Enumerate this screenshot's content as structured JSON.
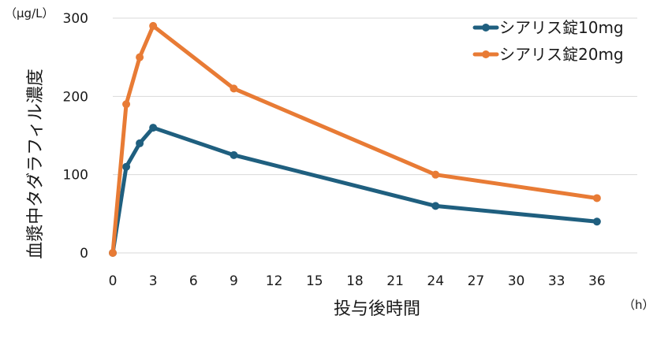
{
  "chart_data": {
    "type": "line",
    "title": "",
    "xlabel": "投与後時間",
    "ylabel": "血漿中タダラフィル濃度",
    "x_unit": "（h）",
    "y_unit": "（μg/L）",
    "x_ticks": [
      0,
      3,
      6,
      9,
      12,
      15,
      18,
      21,
      24,
      27,
      30,
      33,
      36
    ],
    "y_ticks": [
      0,
      100,
      200,
      300
    ],
    "xlim": [
      0,
      39
    ],
    "ylim": [
      0,
      300
    ],
    "grid": "horizontal",
    "legend_position": "top-right",
    "series": [
      {
        "name": "シアリス錠10mg",
        "color": "#1f5f7f",
        "x": [
          0,
          1,
          2,
          3,
          9,
          24,
          36
        ],
        "values": [
          0,
          110,
          140,
          160,
          125,
          60,
          40
        ]
      },
      {
        "name": "シアリス錠20mg",
        "color": "#e87b35",
        "x": [
          0,
          1,
          2,
          3,
          9,
          24,
          36
        ],
        "values": [
          0,
          190,
          250,
          290,
          210,
          100,
          70
        ]
      }
    ]
  }
}
